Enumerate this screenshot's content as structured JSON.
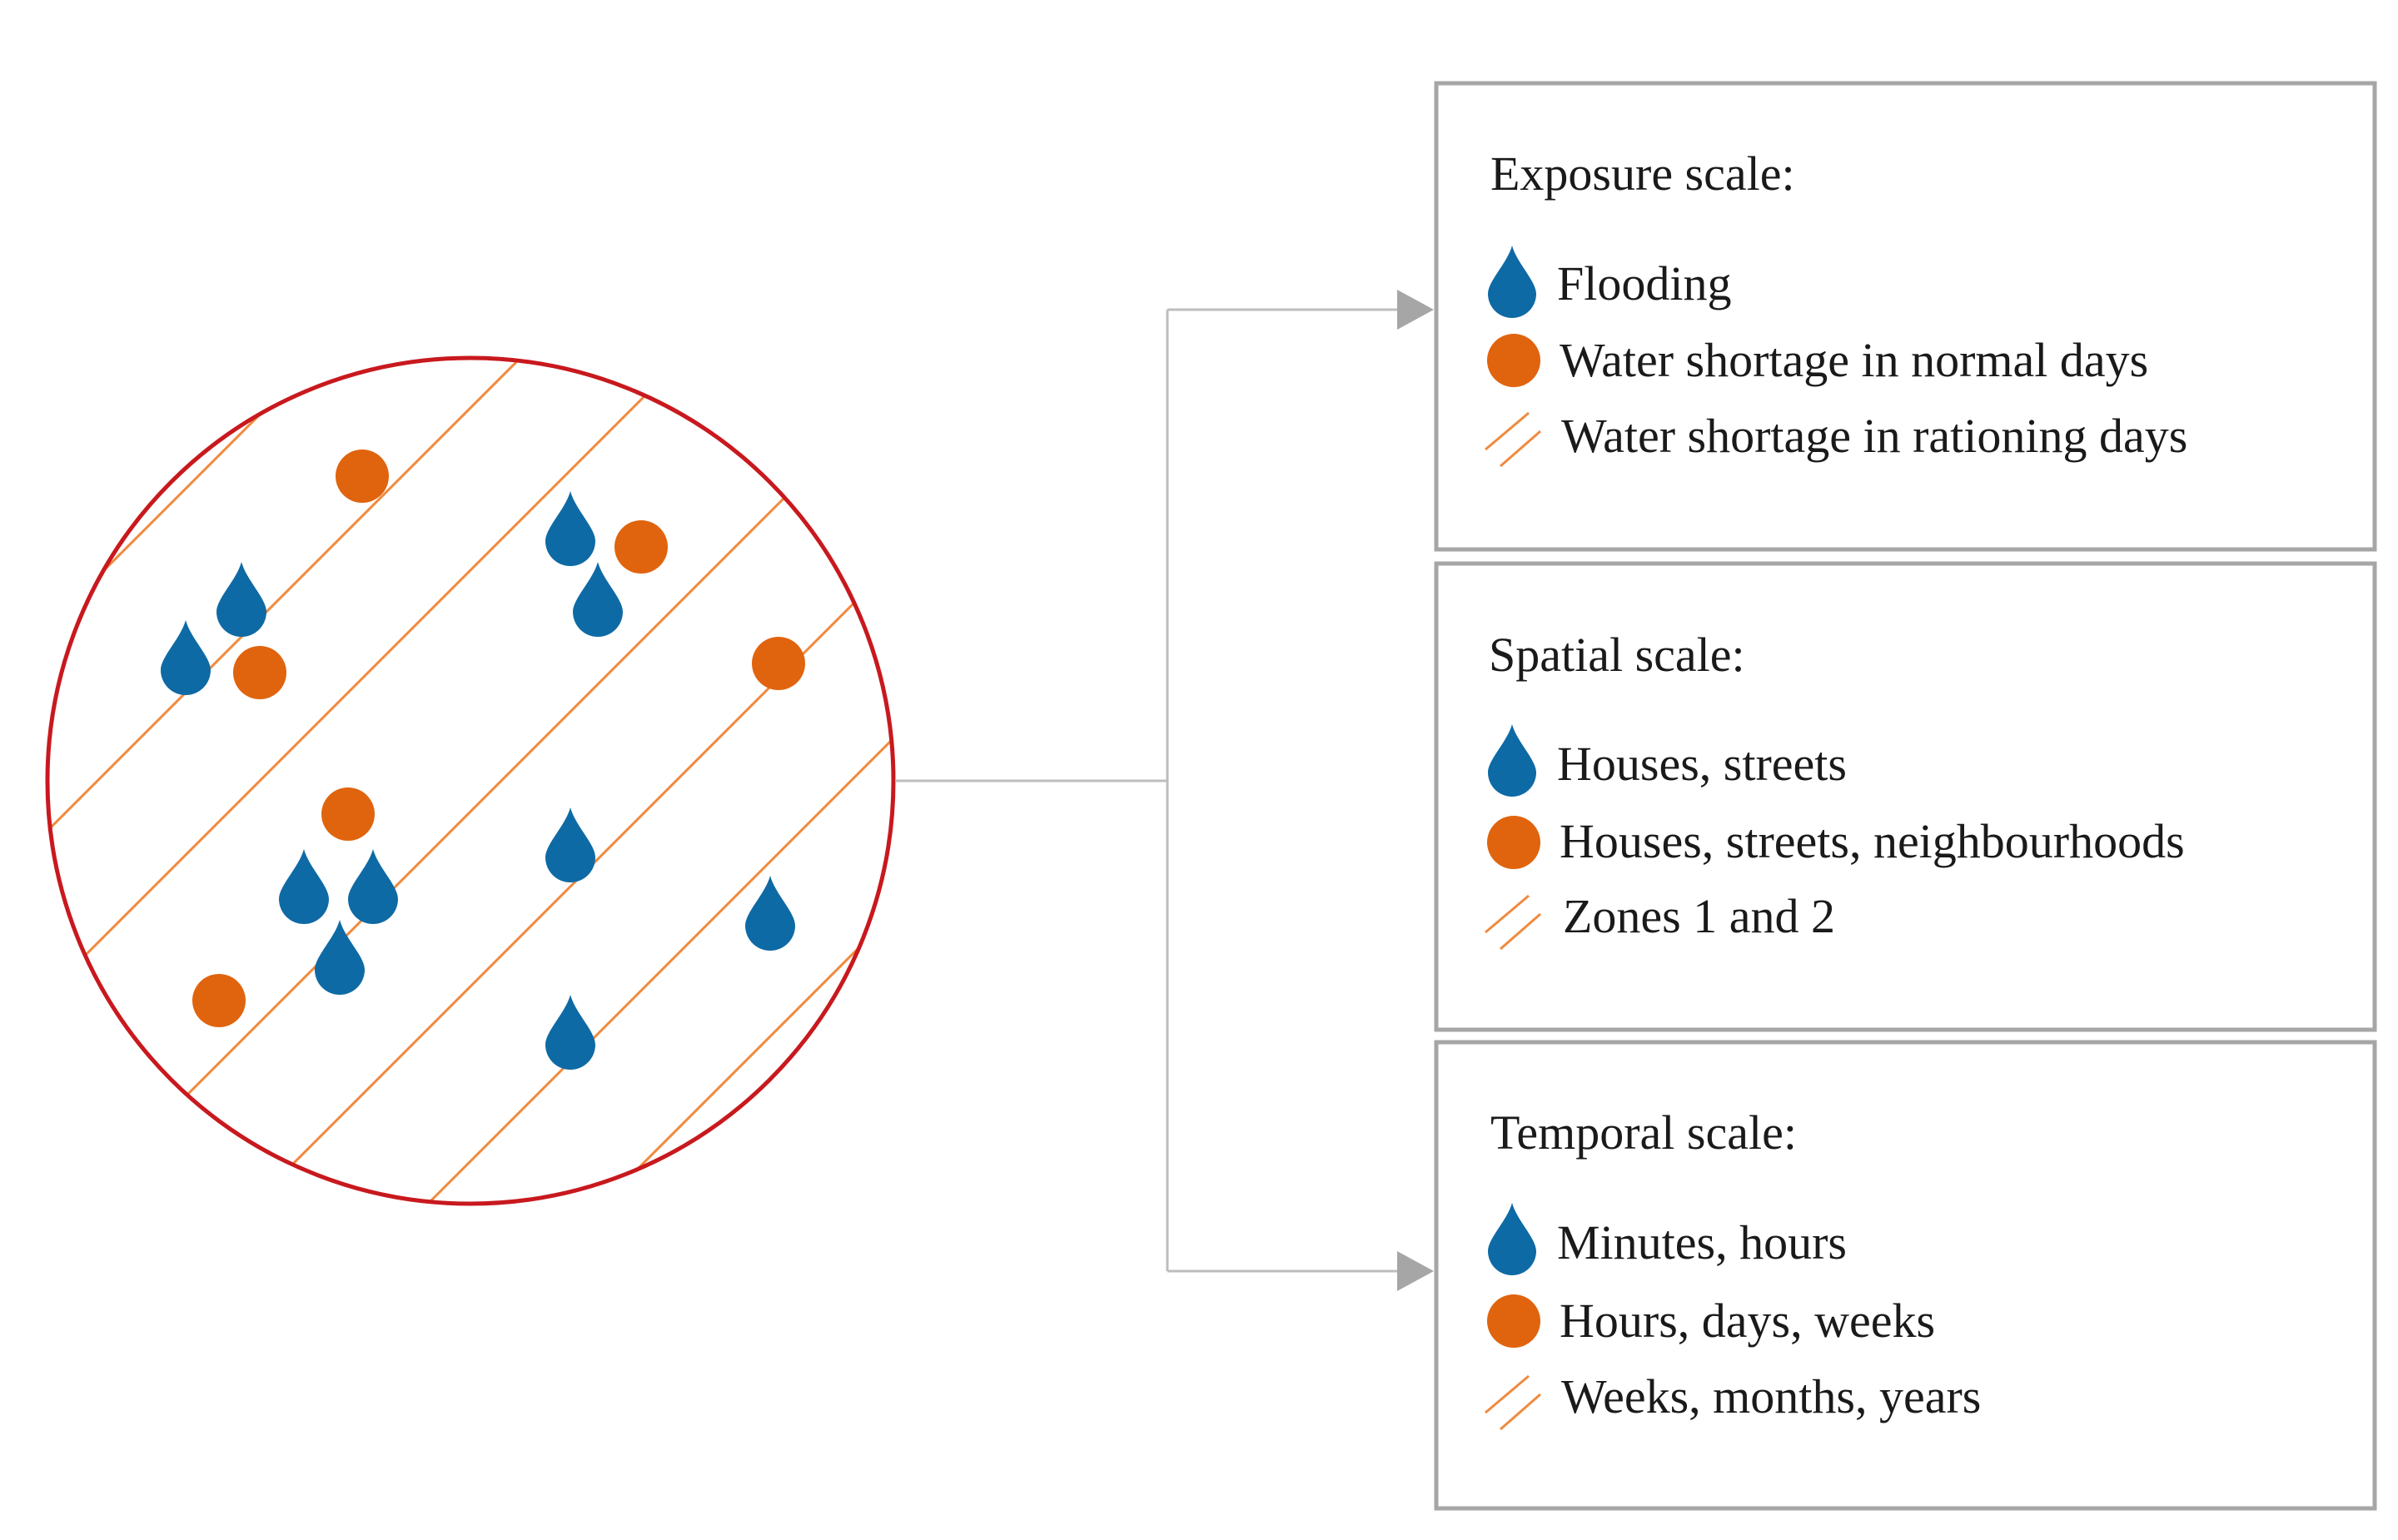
{
  "colors": {
    "drop": "#0e6aa5",
    "dot": "#e0640e",
    "hatch": "#f08a3e",
    "circle_border": "#c8191e",
    "panel_border": "#a6a6a6",
    "connector": "#bdbdbd",
    "arrow": "#a6a6a6"
  },
  "icons": {
    "drop": "water-drop-icon",
    "dot": "orange-dot-icon",
    "hatch": "hatch-lines-icon"
  },
  "panels": [
    {
      "id": "exposure",
      "title": "Exposure scale:",
      "items": [
        {
          "icon": "drop",
          "text": "Flooding"
        },
        {
          "icon": "dot",
          "text": "Water shortage in normal days"
        },
        {
          "icon": "hatch",
          "text": "Water shortage in rationing days"
        }
      ]
    },
    {
      "id": "spatial",
      "title": "Spatial scale:",
      "items": [
        {
          "icon": "drop",
          "text": "Houses, streets"
        },
        {
          "icon": "dot",
          "text": "Houses, streets, neighbourhoods"
        },
        {
          "icon": "hatch",
          "text": "Zones 1 and 2"
        }
      ]
    },
    {
      "id": "temporal",
      "title": "Temporal scale:",
      "items": [
        {
          "icon": "drop",
          "text": "Minutes, hours"
        },
        {
          "icon": "dot",
          "text": "Hours, days, weeks"
        },
        {
          "icon": "hatch",
          "text": "Weeks, months, years"
        }
      ]
    }
  ]
}
